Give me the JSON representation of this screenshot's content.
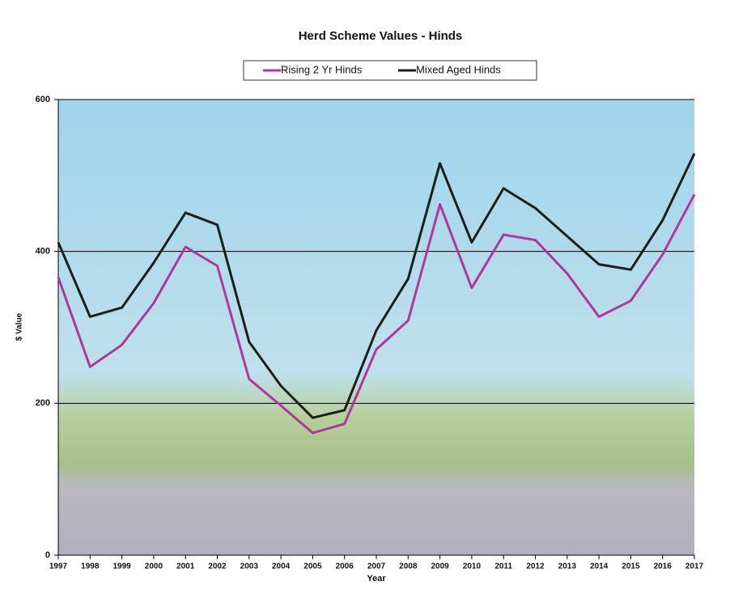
{
  "chart_data": {
    "type": "line",
    "title": "Herd Scheme Values - Hinds",
    "x_label": "Year",
    "y_label": "$ Value",
    "categories": [
      "1997",
      "1998",
      "1999",
      "2000",
      "2001",
      "2002",
      "2003",
      "2004",
      "2005",
      "2006",
      "2007",
      "2008",
      "2009",
      "2010",
      "2011",
      "2012",
      "2013",
      "2014",
      "2015",
      "2016",
      "2017"
    ],
    "series": [
      {
        "name": "Rising 2 Yr Hinds",
        "color": "#b0389a",
        "values": [
          366,
          248,
          277,
          332,
          406,
          381,
          232,
          197,
          161,
          173,
          271,
          309,
          462,
          352,
          422,
          415,
          371,
          314,
          335,
          396,
          475
        ]
      },
      {
        "name": "Mixed Aged Hinds",
        "color": "#1a1f1a",
        "values": [
          412,
          314,
          326,
          385,
          451,
          435,
          281,
          223,
          181,
          191,
          296,
          364,
          516,
          412,
          483,
          457,
          420,
          383,
          376,
          441,
          529
        ]
      }
    ],
    "ylim": [
      0,
      600
    ],
    "yticks": [
      0,
      200,
      400,
      600
    ],
    "grid": true,
    "legend": "top"
  }
}
